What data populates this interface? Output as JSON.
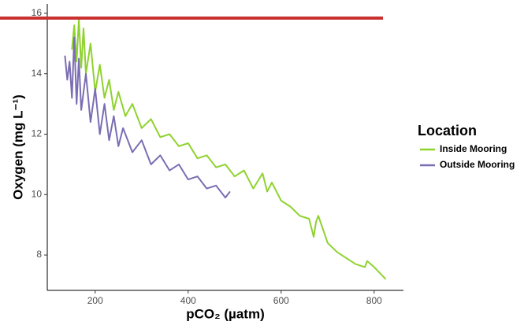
{
  "chart_data": {
    "type": "line",
    "x_label": "pCO₂ (µatm)",
    "y_label": "Oxygen (mg L⁻¹)",
    "legend_title": "Location",
    "legend_position": "right",
    "xlim": [
      97,
      863
    ],
    "xticks": [
      200,
      400,
      600,
      800
    ],
    "ylim": [
      6.83,
      16.31
    ],
    "yticks": [
      8,
      10,
      12,
      14,
      16
    ],
    "reference_line": {
      "value": 15.84,
      "color": "#c8312f"
    },
    "series": [
      {
        "name": "Inside Mooring",
        "color": "#8fd22e",
        "x": [
          150,
          155,
          160,
          165,
          170,
          175,
          180,
          190,
          200,
          210,
          220,
          230,
          240,
          250,
          265,
          280,
          300,
          320,
          340,
          360,
          380,
          400,
          420,
          440,
          460,
          480,
          500,
          520,
          540,
          560,
          570,
          580,
          600,
          620,
          640,
          660,
          670,
          675,
          680,
          700,
          720,
          740,
          760,
          780,
          785,
          800,
          825
        ],
        "values": [
          14.8,
          15.6,
          14.4,
          15.8,
          14.2,
          15.5,
          14.0,
          15.0,
          13.4,
          14.3,
          13.2,
          13.8,
          12.8,
          13.4,
          12.6,
          13.0,
          12.2,
          12.5,
          11.9,
          12.0,
          11.6,
          11.7,
          11.2,
          11.3,
          10.9,
          11.0,
          10.6,
          10.8,
          10.2,
          10.7,
          10.1,
          10.4,
          9.8,
          9.6,
          9.3,
          9.2,
          8.6,
          9.1,
          9.3,
          8.4,
          8.1,
          7.9,
          7.7,
          7.6,
          7.8,
          7.6,
          7.2
        ]
      },
      {
        "name": "Outside Mooring",
        "color": "#7a6db3",
        "x": [
          135,
          140,
          145,
          150,
          155,
          160,
          165,
          170,
          180,
          190,
          200,
          210,
          220,
          230,
          240,
          250,
          260,
          280,
          300,
          320,
          340,
          360,
          380,
          400,
          420,
          440,
          460,
          480,
          490
        ],
        "values": [
          14.6,
          13.8,
          14.4,
          13.2,
          15.2,
          13.0,
          14.5,
          12.8,
          14.0,
          12.4,
          13.5,
          12.0,
          13.0,
          11.8,
          12.6,
          11.6,
          12.2,
          11.4,
          11.8,
          11.0,
          11.3,
          10.8,
          11.0,
          10.5,
          10.6,
          10.2,
          10.3,
          9.9,
          10.1
        ]
      }
    ]
  }
}
